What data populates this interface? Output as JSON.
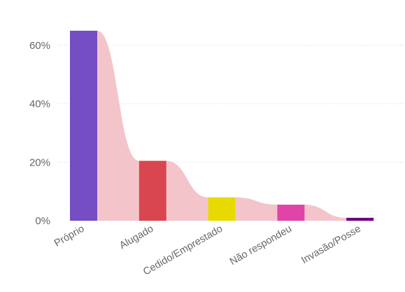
{
  "chart_data": {
    "type": "bar",
    "categories": [
      "Próprio",
      "Alugado",
      "Cedido/Emprestado",
      "Não respondeu",
      "Invasão/Posse"
    ],
    "values": [
      65,
      20.5,
      8,
      5.5,
      1
    ],
    "bar_colors": [
      "#744EC2",
      "#D9464F",
      "#E8D900",
      "#E044A7",
      "#6B007B"
    ],
    "ribbon_color": "#F3C5CB",
    "y_ticks": [
      "0%",
      "20%",
      "40%",
      "60%"
    ],
    "ylim": [
      0,
      70
    ],
    "grid": true,
    "title": "",
    "xlabel": "",
    "ylabel": ""
  }
}
